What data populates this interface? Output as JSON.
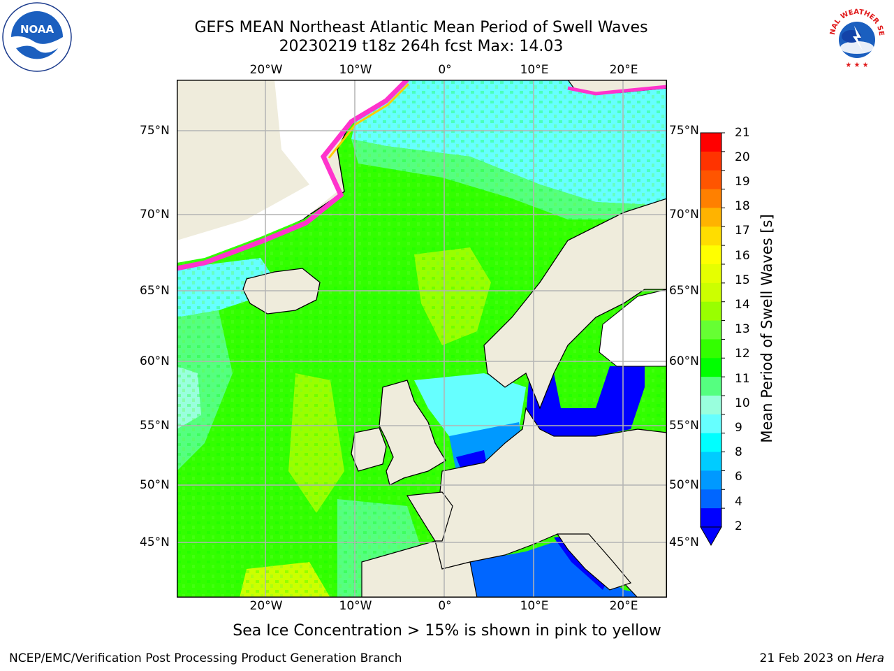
{
  "title": {
    "line1": "GEFS MEAN Northeast Atlantic Mean Period of Swell Waves",
    "line2": "20230219 t18z 264h fcst   Max: 14.03"
  },
  "map": {
    "lon_ticks": [
      "20°W",
      "10°W",
      "0°",
      "10°E",
      "20°E"
    ],
    "lat_ticks": [
      "75°N",
      "70°N",
      "65°N",
      "60°N",
      "55°N",
      "50°N",
      "45°N"
    ],
    "colors": {
      "land": "#efecdc",
      "ice_free_white": "#ffffff",
      "grid": "#b4b4b4",
      "coast": "#000000"
    }
  },
  "colorbar": {
    "label": "Mean Period of Swell Waves [s]",
    "ticks": [
      "21",
      "20",
      "19",
      "18",
      "17",
      "16",
      "15",
      "14",
      "13",
      "12",
      "11",
      "10",
      "9",
      "8",
      "6",
      "4",
      "2"
    ],
    "colors": [
      "#ff0000",
      "#ff3300",
      "#ff5500",
      "#ff8000",
      "#ffb300",
      "#ffdd00",
      "#ffff00",
      "#e6ff00",
      "#ccff00",
      "#99ff00",
      "#66ff33",
      "#33ff00",
      "#00ff00",
      "#55ff80",
      "#99ffdd",
      "#66ffff",
      "#00ffff",
      "#00ccff",
      "#0099ff",
      "#0066ff",
      "#0000ff"
    ],
    "under_color": "#0000ff"
  },
  "caption": "Sea Ice Concentration > 15% is shown in pink to yellow",
  "footer": {
    "left": "NCEP/EMC/Verification Post Processing Product Generation Branch",
    "right_date": "21 Feb 2023 on",
    "right_host": "Hera"
  },
  "logos": {
    "noaa_text": "NOAA",
    "noaa_ring": "NATIONAL OCEANIC AND ATMOSPHERIC ADMINISTRATION · U.S. DEPARTMENT OF COMMERCE",
    "nws_ring": "NATIONAL WEATHER SERVICE"
  }
}
